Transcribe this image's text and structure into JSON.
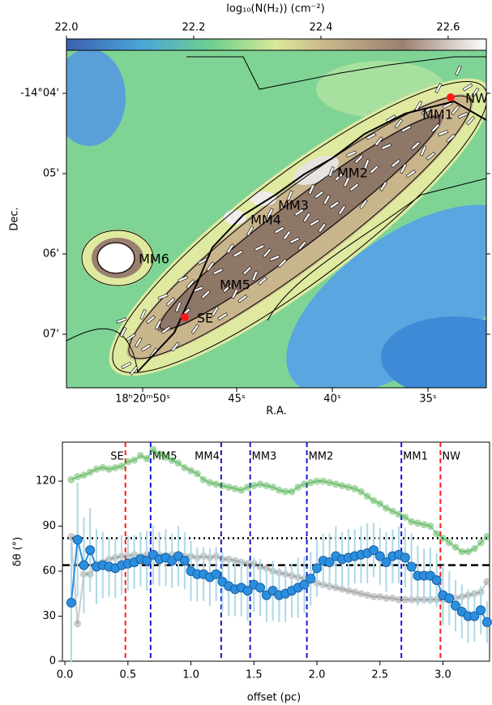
{
  "chart_data": [
    {
      "type": "image",
      "colorbar_label": "log₁₀(N(H₂)) (cm⁻²)",
      "clim": [
        22.0,
        22.66
      ],
      "colorbar_ticks": [
        {
          "value": 22.0,
          "label": "22.0"
        },
        22.2,
        22.4,
        22.6
      ],
      "xlabel": "R.A.",
      "ylabel": "Dec.",
      "x_tick_labels": [
        "18ʰ20ᵐ50ˢ",
        "45ˢ",
        "40ˢ",
        "35ˢ"
      ],
      "y_tick_labels": [
        "-14°04'",
        "05'",
        "06'",
        "07'"
      ],
      "annotations": [
        {
          "text": "MM1",
          "color": "#1515e0"
        },
        {
          "text": "MM2",
          "color": "#1515e0"
        },
        {
          "text": "MM3",
          "color": "#1515e0"
        },
        {
          "text": "MM4",
          "color": "#1515e0"
        },
        {
          "text": "MM5",
          "color": "#1515e0"
        },
        {
          "text": "MM6",
          "color": "#1515e0"
        },
        {
          "text": "NW",
          "color": "#ff1a1a"
        },
        {
          "text": "SE",
          "color": "#ff1a1a"
        }
      ]
    },
    {
      "type": "line",
      "xlabel": "offset (pc)",
      "ylabel": "δθ (°)",
      "xlim": [
        -0.02,
        3.37
      ],
      "ylim": [
        0,
        146
      ],
      "xticks": [
        {
          "value": 0,
          "label": "0.0"
        },
        0.5,
        {
          "value": 1,
          "label": "1.0"
        },
        1.5,
        {
          "value": 2,
          "label": "2.0"
        },
        2.5,
        {
          "value": 3,
          "label": "3.0"
        }
      ],
      "yticks": [
        0,
        30,
        60,
        90,
        120
      ],
      "hlines": [
        {
          "y": 82,
          "style": "dotted"
        },
        {
          "y": 64,
          "style": "dashed"
        }
      ],
      "vlines": [
        {
          "x": 0.48,
          "label": "SE",
          "color": "#ff1a1a"
        },
        {
          "x": 0.68,
          "label": "MM5",
          "color": "#1515e0"
        },
        {
          "x": 1.24,
          "label": "MM4",
          "color": "#1515e0"
        },
        {
          "x": 1.47,
          "label": "MM3",
          "color": "#1515e0"
        },
        {
          "x": 1.92,
          "label": "MM2",
          "color": "#1515e0"
        },
        {
          "x": 2.67,
          "label": "MM1",
          "color": "#1515e0"
        },
        {
          "x": 2.98,
          "label": "NW",
          "color": "#ff1a1a"
        }
      ],
      "x": [
        0.05,
        0.1,
        0.15,
        0.2,
        0.25,
        0.3,
        0.35,
        0.4,
        0.45,
        0.5,
        0.55,
        0.6,
        0.65,
        0.7,
        0.75,
        0.8,
        0.85,
        0.9,
        0.95,
        1.0,
        1.05,
        1.1,
        1.15,
        1.2,
        1.25,
        1.3,
        1.35,
        1.4,
        1.45,
        1.5,
        1.55,
        1.6,
        1.65,
        1.7,
        1.75,
        1.8,
        1.85,
        1.9,
        1.95,
        2.0,
        2.05,
        2.1,
        2.15,
        2.2,
        2.25,
        2.3,
        2.35,
        2.4,
        2.45,
        2.5,
        2.55,
        2.6,
        2.65,
        2.7,
        2.75,
        2.8,
        2.85,
        2.9,
        2.95,
        3.0,
        3.05,
        3.1,
        3.15,
        3.2,
        3.25,
        3.3,
        3.35
      ],
      "series": [
        {
          "color": "#2ca02c",
          "alpha": 0.4,
          "values": [
            121,
            123,
            124,
            126,
            128,
            129,
            128,
            129,
            130,
            133,
            134,
            137,
            135,
            141,
            138,
            136,
            134,
            132,
            129,
            127,
            125,
            121,
            119,
            118,
            117,
            116,
            115,
            114,
            116,
            117,
            118,
            117,
            116,
            114,
            113,
            113,
            116,
            118,
            119,
            120,
            120,
            119,
            118,
            117,
            116,
            115,
            113,
            110,
            107,
            105,
            102,
            100,
            98,
            96,
            93,
            92,
            91,
            90,
            85,
            82,
            79,
            76,
            73,
            73,
            75,
            79,
            83
          ]
        },
        {
          "color": "#7f7f7f",
          "alpha": 0.4,
          "values": [
            83,
            25,
            58,
            58,
            65,
            66,
            68,
            69,
            70,
            70,
            71,
            70,
            71,
            70,
            71,
            70,
            71,
            70,
            70,
            70,
            69,
            70,
            69,
            70,
            68,
            68,
            67,
            66,
            65,
            65,
            63,
            62,
            60,
            59,
            58,
            57,
            56,
            55,
            54,
            52,
            51,
            50,
            49,
            48,
            47,
            46,
            45,
            44,
            43,
            43,
            42,
            42,
            41,
            41,
            41,
            41,
            41,
            41,
            41,
            41,
            41,
            42,
            43,
            44,
            45,
            46,
            53
          ]
        },
        {
          "color": "#2b8fe0",
          "alpha": 1,
          "error_color": "#add8e6",
          "values": [
            39,
            81,
            64,
            74,
            63,
            64,
            63,
            62,
            64,
            65,
            66,
            68,
            67,
            71,
            68,
            69,
            67,
            70,
            67,
            60,
            58,
            58,
            56,
            58,
            53,
            50,
            48,
            49,
            47,
            51,
            49,
            44,
            47,
            44,
            45,
            47,
            49,
            51,
            55,
            62,
            67,
            66,
            70,
            68,
            69,
            70,
            71,
            72,
            74,
            70,
            66,
            70,
            71,
            69,
            63,
            57,
            57,
            57,
            54,
            44,
            42,
            37,
            33,
            30,
            30,
            34,
            26
          ],
          "errors": [
            40,
            38,
            32,
            28,
            25,
            22,
            20,
            20,
            20,
            18,
            18,
            18,
            20,
            20,
            18,
            19,
            18,
            20,
            19,
            20,
            18,
            18,
            19,
            18,
            20,
            20,
            18,
            19,
            20,
            18,
            19,
            18,
            20,
            18,
            19,
            18,
            20,
            19,
            18,
            19,
            18,
            19,
            20,
            18,
            19,
            18,
            19,
            20,
            18,
            19,
            20,
            18,
            19,
            20,
            22,
            20,
            18,
            19,
            18,
            20,
            18,
            17,
            18,
            18,
            17,
            16,
            14
          ]
        }
      ]
    }
  ]
}
